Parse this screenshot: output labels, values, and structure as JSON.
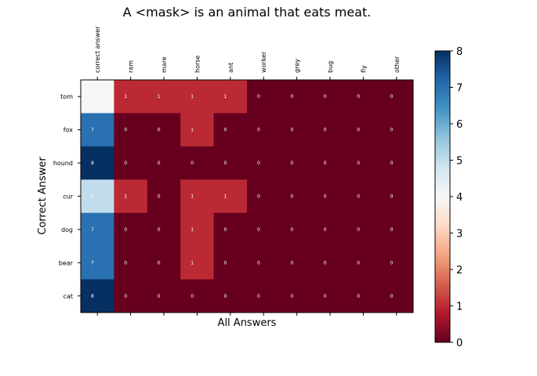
{
  "chart_data": {
    "type": "heatmap",
    "title": "A <mask> is an animal that eats meat.",
    "xlabel": "All Answers",
    "ylabel": "Correct Answer",
    "x_categories": [
      "correct answer",
      "ram",
      "mare",
      "horse",
      "ant",
      "worker",
      "grey",
      "bug",
      "fly",
      "other"
    ],
    "y_categories": [
      "tom",
      "fox",
      "hound",
      "cur",
      "dog",
      "bear",
      "cat"
    ],
    "values": [
      [
        4,
        1,
        1,
        1,
        1,
        0,
        0,
        0,
        0,
        0
      ],
      [
        7,
        0,
        0,
        1,
        0,
        0,
        0,
        0,
        0,
        0
      ],
      [
        8,
        0,
        0,
        0,
        0,
        0,
        0,
        0,
        0,
        0
      ],
      [
        5,
        1,
        0,
        1,
        1,
        0,
        0,
        0,
        0,
        0
      ],
      [
        7,
        0,
        0,
        1,
        0,
        0,
        0,
        0,
        0,
        0
      ],
      [
        7,
        0,
        0,
        1,
        0,
        0,
        0,
        0,
        0,
        0
      ],
      [
        8,
        0,
        0,
        0,
        0,
        0,
        0,
        0,
        0,
        0
      ]
    ],
    "colorbar": {
      "min": 0,
      "max": 8,
      "ticks": [
        0,
        1,
        2,
        3,
        4,
        5,
        6,
        7,
        8
      ],
      "colormap": "RdBu"
    },
    "grid": false
  }
}
